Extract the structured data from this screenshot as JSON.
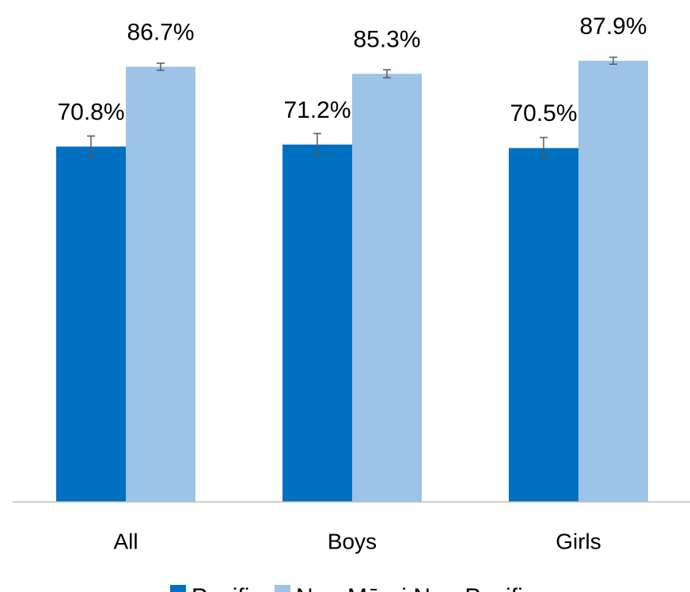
{
  "chart_data": {
    "type": "bar",
    "categories": [
      "All",
      "Boys",
      "Girls"
    ],
    "series": [
      {
        "name": "Pacific",
        "color": "#0070c0",
        "values": [
          70.8,
          71.2,
          70.5
        ],
        "value_labels": [
          "70.8%",
          "71.2%",
          "70.5%"
        ],
        "errors": [
          2.1,
          2.2,
          2.1
        ]
      },
      {
        "name": "Non-Māori Non-Pacific",
        "color": "#9dc3e6",
        "values": [
          86.7,
          85.3,
          87.9
        ],
        "value_labels": [
          "86.7%",
          "85.3%",
          "87.9%"
        ],
        "errors": [
          0.7,
          0.8,
          0.7
        ]
      }
    ],
    "ylim": [
      0,
      100
    ],
    "error_color": "#595959"
  }
}
